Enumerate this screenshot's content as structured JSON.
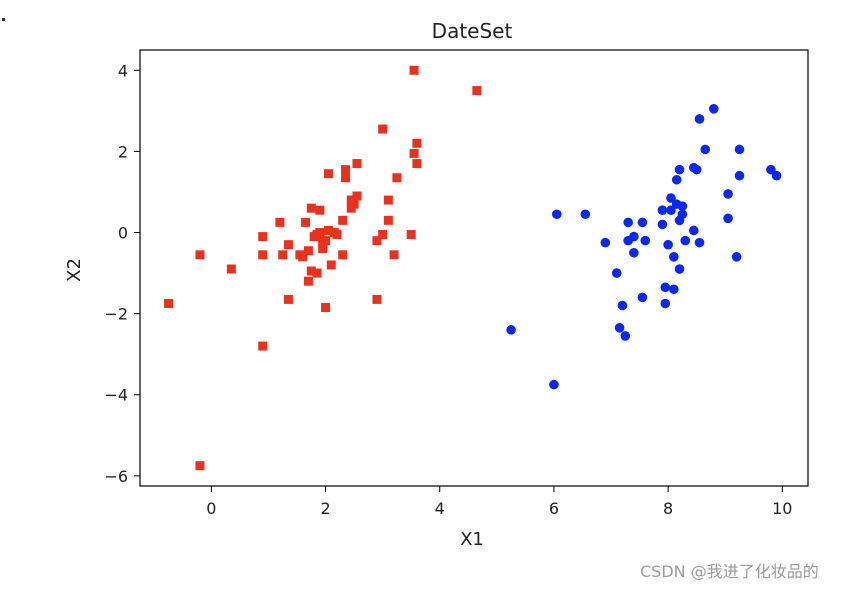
{
  "chart_data": {
    "type": "scatter",
    "title": "DateSet",
    "xlabel": "X1",
    "ylabel": "X2",
    "xlim": [
      -1.25,
      10.45
    ],
    "ylim": [
      -6.25,
      4.5
    ],
    "xticks": [
      0,
      2,
      4,
      6,
      8,
      10
    ],
    "yticks": [
      -6,
      -4,
      -2,
      0,
      2,
      4
    ],
    "grid": false,
    "series": [
      {
        "marker": "square",
        "color": "#e8321e",
        "points": [
          [
            -0.75,
            -1.75
          ],
          [
            -0.2,
            -0.55
          ],
          [
            -0.2,
            -5.75
          ],
          [
            0.35,
            -0.9
          ],
          [
            0.9,
            -0.1
          ],
          [
            0.9,
            -0.55
          ],
          [
            0.9,
            -2.8
          ],
          [
            1.2,
            0.25
          ],
          [
            1.25,
            -0.55
          ],
          [
            1.35,
            -0.3
          ],
          [
            1.35,
            -1.65
          ],
          [
            1.55,
            -0.55
          ],
          [
            1.6,
            -0.6
          ],
          [
            1.65,
            0.25
          ],
          [
            1.7,
            -0.45
          ],
          [
            1.7,
            -1.2
          ],
          [
            1.75,
            0.6
          ],
          [
            1.75,
            -0.95
          ],
          [
            1.8,
            -0.1
          ],
          [
            1.85,
            -0.05
          ],
          [
            1.85,
            -1.0
          ],
          [
            1.9,
            0.55
          ],
          [
            1.9,
            0.0
          ],
          [
            1.95,
            -0.25
          ],
          [
            1.95,
            -0.4
          ],
          [
            2.0,
            -1.85
          ],
          [
            2.0,
            -0.2
          ],
          [
            2.05,
            0.05
          ],
          [
            2.05,
            1.45
          ],
          [
            2.1,
            -0.8
          ],
          [
            2.15,
            0.0
          ],
          [
            2.2,
            -0.05
          ],
          [
            2.3,
            0.3
          ],
          [
            2.3,
            -0.55
          ],
          [
            2.35,
            1.55
          ],
          [
            2.35,
            1.35
          ],
          [
            2.45,
            0.6
          ],
          [
            2.45,
            0.8
          ],
          [
            2.5,
            0.7
          ],
          [
            2.55,
            1.7
          ],
          [
            2.55,
            0.9
          ],
          [
            2.9,
            -0.2
          ],
          [
            2.9,
            -1.65
          ],
          [
            3.0,
            2.55
          ],
          [
            3.0,
            -0.05
          ],
          [
            3.1,
            0.8
          ],
          [
            3.1,
            0.3
          ],
          [
            3.2,
            -0.55
          ],
          [
            3.25,
            1.35
          ],
          [
            3.5,
            -0.05
          ],
          [
            3.55,
            4.0
          ],
          [
            3.55,
            1.95
          ],
          [
            3.6,
            2.2
          ],
          [
            3.6,
            1.7
          ],
          [
            4.65,
            3.5
          ]
        ]
      },
      {
        "marker": "circle",
        "color": "#0a28f0",
        "points": [
          [
            5.25,
            -2.4
          ],
          [
            6.0,
            -3.75
          ],
          [
            6.05,
            0.45
          ],
          [
            6.55,
            0.45
          ],
          [
            6.9,
            -0.25
          ],
          [
            7.1,
            -1.0
          ],
          [
            7.15,
            -2.35
          ],
          [
            7.2,
            -1.8
          ],
          [
            7.25,
            -2.55
          ],
          [
            7.3,
            0.25
          ],
          [
            7.3,
            -0.2
          ],
          [
            7.4,
            -0.1
          ],
          [
            7.4,
            -0.5
          ],
          [
            7.55,
            0.25
          ],
          [
            7.6,
            -0.2
          ],
          [
            7.55,
            -1.6
          ],
          [
            7.9,
            0.55
          ],
          [
            7.9,
            0.2
          ],
          [
            7.95,
            -1.35
          ],
          [
            7.95,
            -1.75
          ],
          [
            8.0,
            -0.3
          ],
          [
            8.05,
            0.85
          ],
          [
            8.05,
            0.55
          ],
          [
            8.1,
            -1.4
          ],
          [
            8.1,
            -0.6
          ],
          [
            8.15,
            1.3
          ],
          [
            8.15,
            0.7
          ],
          [
            8.2,
            0.3
          ],
          [
            8.2,
            -0.9
          ],
          [
            8.2,
            1.55
          ],
          [
            8.25,
            0.65
          ],
          [
            8.25,
            0.45
          ],
          [
            8.3,
            -0.2
          ],
          [
            8.45,
            1.6
          ],
          [
            8.45,
            0.05
          ],
          [
            8.5,
            1.55
          ],
          [
            8.55,
            -0.25
          ],
          [
            8.55,
            2.8
          ],
          [
            8.65,
            2.05
          ],
          [
            8.8,
            3.05
          ],
          [
            9.05,
            0.95
          ],
          [
            9.05,
            0.35
          ],
          [
            9.2,
            -0.6
          ],
          [
            9.25,
            2.05
          ],
          [
            9.25,
            1.4
          ],
          [
            9.8,
            1.55
          ],
          [
            9.9,
            1.4
          ]
        ]
      }
    ]
  },
  "watermark": "CSDN @我进了化妆品的"
}
